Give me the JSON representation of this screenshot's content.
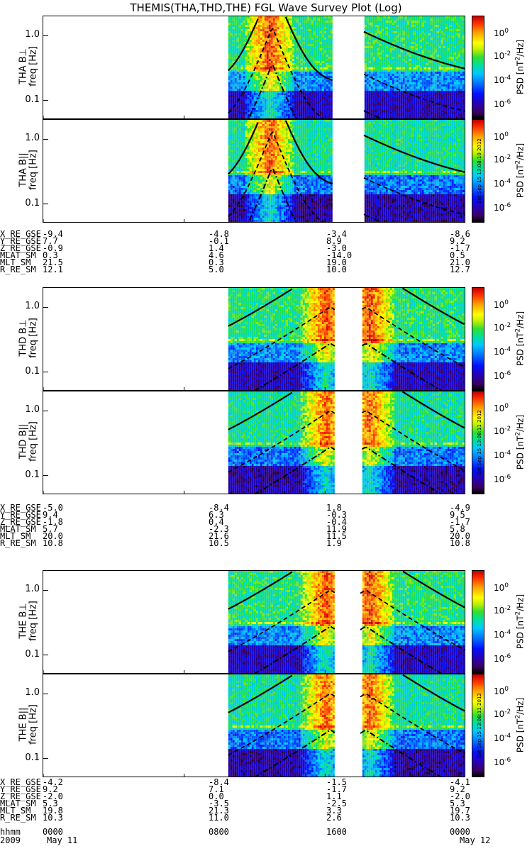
{
  "title": "THEMIS(THA,THD,THE) FGL Wave Survey Plot (Log)",
  "chart_data": {
    "type": "heatmap",
    "x_axis": {
      "start": "2009-05-11 00:00",
      "end": "2009-05-12 00:00",
      "tick_hours": [
        0,
        8,
        16,
        24
      ]
    },
    "y_axis": {
      "label": "freq [Hz]",
      "scale": "log",
      "range_hz": [
        0.05,
        2.0
      ],
      "tick_labels": [
        "1.0",
        "0.1"
      ],
      "tick_values": [
        1.0,
        0.1
      ]
    },
    "colorbar": {
      "label": "PSD [nT²/Hz]",
      "label_main": "PSD [nT",
      "label_sup": "2",
      "label_tail": "/Hz]",
      "scale": "log",
      "ticks": [
        {
          "base": "10",
          "exp": "0",
          "value": 1
        },
        {
          "base": "10",
          "exp": "-2",
          "value": 0.01
        },
        {
          "base": "10",
          "exp": "-4",
          "value": 0.0001
        },
        {
          "base": "10",
          "exp": "-6",
          "value": 1e-06
        }
      ]
    },
    "panels": [
      {
        "probe": "THA",
        "component": "B⊥",
        "label": "THA B⊥",
        "data_start_hour": 10.5,
        "data_end_hour": 24,
        "gaps": [
          [
            16.5,
            18.2
          ]
        ],
        "stamp": ""
      },
      {
        "probe": "THA",
        "component": "B||",
        "label": "THA B||",
        "data_start_hour": 10.5,
        "data_end_hour": 24,
        "gaps": [
          [
            16.5,
            18.2
          ]
        ],
        "stamp": "Sat Sep 15 13:08:10 2012"
      },
      {
        "probe": "THD",
        "component": "B⊥",
        "label": "THD B⊥",
        "data_start_hour": 10.5,
        "data_end_hour": 24,
        "gaps": [
          [
            16.6,
            18.1
          ]
        ],
        "stamp": ""
      },
      {
        "probe": "THD",
        "component": "B||",
        "label": "THD B||",
        "data_start_hour": 10.5,
        "data_end_hour": 24,
        "gaps": [
          [
            16.6,
            18.1
          ]
        ],
        "stamp": "Sat Sep 15 13:08:11 2012"
      },
      {
        "probe": "THE",
        "component": "B⊥",
        "label": "THE B⊥",
        "data_start_hour": 10.5,
        "data_end_hour": 24,
        "gaps": [
          [
            16.6,
            18.0
          ]
        ],
        "stamp": ""
      },
      {
        "probe": "THE",
        "component": "B||",
        "label": "THE B||",
        "data_start_hour": 10.5,
        "data_end_hour": 24,
        "gaps": [
          [
            16.6,
            18.0
          ]
        ],
        "stamp": "Sat Sep 15 13:08:11 2012"
      }
    ],
    "ephemeris": [
      {
        "probe": "THA",
        "rows": [
          {
            "name": "X_RE_GSE",
            "values": [
              "-9.4",
              "-4.8",
              "-3.4",
              "-8.6"
            ]
          },
          {
            "name": "Y_RE_GSE",
            "values": [
              "7.7",
              "-0.1",
              "8.9",
              "9.2"
            ]
          },
          {
            "name": "Z_RE_GSE",
            "values": [
              "-0.9",
              "1.4",
              "-3.0",
              "-1.7"
            ]
          },
          {
            "name": "MLAT_SM",
            "values": [
              "0.3",
              "4.6",
              "-14.0",
              "0.5"
            ]
          },
          {
            "name": "MLT_SM",
            "values": [
              "21.5",
              "0.3",
              "19.0",
              "21.0"
            ]
          },
          {
            "name": "R_RE_SM",
            "values": [
              "12.1",
              "5.0",
              "10.0",
              "12.7"
            ]
          }
        ]
      },
      {
        "probe": "THD",
        "rows": [
          {
            "name": "X_RE_GSE",
            "values": [
              "-5.0",
              "-8.4",
              "1.8",
              "-4.9"
            ]
          },
          {
            "name": "Y_RE_GSE",
            "values": [
              "9.4",
              "6.3",
              "-0.3",
              "9.5"
            ]
          },
          {
            "name": "Z_RE_GSE",
            "values": [
              "-1.8",
              "0.4",
              "-0.4",
              "-1.7"
            ]
          },
          {
            "name": "MLAT_SM",
            "values": [
              "5.7",
              "-2.3",
              "11.9",
              "5.8"
            ]
          },
          {
            "name": "MLT_SM",
            "values": [
              "20.0",
              "21.6",
              "11.5",
              "20.0"
            ]
          },
          {
            "name": "R_RE_SM",
            "values": [
              "10.8",
              "10.5",
              "1.9",
              "10.8"
            ]
          }
        ]
      },
      {
        "probe": "THE",
        "rows": [
          {
            "name": "X_RE_GSE",
            "values": [
              "-4.2",
              "-8.4",
              "-1.5",
              "-4.1"
            ]
          },
          {
            "name": "Y_RE_GSE",
            "values": [
              "9.2",
              "7.1",
              "-1.7",
              "9.2"
            ]
          },
          {
            "name": "Z_RE_GSE",
            "values": [
              "-2.0",
              "0.0",
              "1.1",
              "-2.0"
            ]
          },
          {
            "name": "MLAT_SM",
            "values": [
              "5.3",
              "-3.5",
              "-2.5",
              "5.3"
            ]
          },
          {
            "name": "MLT_SM",
            "values": [
              "19.8",
              "21.3",
              "3.3",
              "19.7"
            ]
          },
          {
            "name": "R_RE_SM",
            "values": [
              "10.3",
              "11.0",
              "2.6",
              "10.3"
            ]
          }
        ]
      }
    ],
    "time_axis": {
      "hhmm_label": "hhmm",
      "hhmm_values": [
        "0000",
        "0800",
        "1600",
        "0000"
      ],
      "year": "2009",
      "start_date": "May 11",
      "end_date": "May 12"
    }
  }
}
